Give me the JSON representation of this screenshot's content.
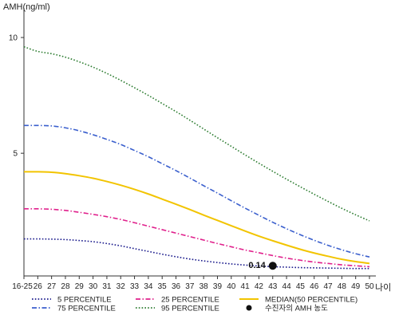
{
  "chart_data": {
    "type": "line",
    "ylabel": "AMH(ng/ml)",
    "xlabel": "나이",
    "categories": [
      "16-25",
      "26",
      "27",
      "28",
      "29",
      "30",
      "31",
      "32",
      "33",
      "34",
      "35",
      "36",
      "37",
      "38",
      "39",
      "40",
      "41",
      "42",
      "43",
      "44",
      "45",
      "46",
      "47",
      "48",
      "49",
      "50"
    ],
    "ylim": [
      -0.3,
      11
    ],
    "yticks": [
      5,
      10
    ],
    "grid": false,
    "legend_position": "bottom",
    "series": [
      {
        "name": "5 PERCENTILE",
        "color": "#1a1a8c",
        "style": "dotted",
        "values": [
          1.3,
          1.3,
          1.29,
          1.27,
          1.23,
          1.18,
          1.1,
          1.0,
          0.88,
          0.76,
          0.64,
          0.53,
          0.43,
          0.35,
          0.28,
          0.22,
          0.17,
          0.13,
          0.1,
          0.08,
          0.06,
          0.05,
          0.04,
          0.03,
          0.02,
          0.02
        ]
      },
      {
        "name": "25 PERCENTILE",
        "color": "#e0208c",
        "style": "dashdot",
        "values": [
          2.6,
          2.6,
          2.58,
          2.53,
          2.45,
          2.36,
          2.26,
          2.14,
          2.0,
          1.85,
          1.7,
          1.55,
          1.4,
          1.25,
          1.1,
          0.96,
          0.82,
          0.7,
          0.58,
          0.47,
          0.38,
          0.3,
          0.24,
          0.18,
          0.14,
          0.1
        ]
      },
      {
        "name": "75 PERCENTILE",
        "color": "#3a5fcd",
        "style": "dashdot",
        "values": [
          6.2,
          6.2,
          6.18,
          6.1,
          5.97,
          5.8,
          5.6,
          5.38,
          5.12,
          4.85,
          4.55,
          4.25,
          3.93,
          3.6,
          3.28,
          2.95,
          2.63,
          2.32,
          2.02,
          1.74,
          1.48,
          1.24,
          1.02,
          0.83,
          0.66,
          0.52
        ]
      },
      {
        "name": "95 PERCENTILE",
        "color": "#2e7d32",
        "style": "dotted",
        "values": [
          9.6,
          9.4,
          9.3,
          9.15,
          8.95,
          8.72,
          8.45,
          8.15,
          7.83,
          7.5,
          7.15,
          6.8,
          6.43,
          6.05,
          5.67,
          5.3,
          4.93,
          4.57,
          4.22,
          3.88,
          3.55,
          3.23,
          2.92,
          2.62,
          2.34,
          2.08
        ]
      },
      {
        "name": "MEDIAN(50 PERCENTILE)",
        "color": "#f2c400",
        "style": "solid",
        "values": [
          4.2,
          4.2,
          4.18,
          4.12,
          4.03,
          3.92,
          3.78,
          3.62,
          3.44,
          3.24,
          3.02,
          2.8,
          2.57,
          2.33,
          2.1,
          1.87,
          1.64,
          1.42,
          1.22,
          1.03,
          0.85,
          0.69,
          0.55,
          0.42,
          0.32,
          0.24
        ]
      }
    ],
    "marker": {
      "name": "수진자의 AMH 농도",
      "x": "43",
      "y": 0.14,
      "label": "0.14"
    }
  }
}
